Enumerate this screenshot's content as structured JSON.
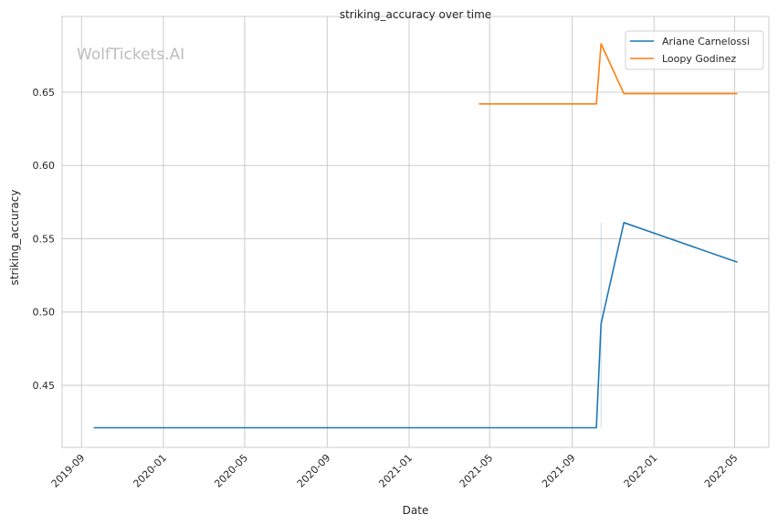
{
  "chart_data": {
    "type": "line",
    "title": "striking_accuracy over time",
    "xlabel": "Date",
    "ylabel": "striking_accuracy",
    "watermark": "WolfTickets.AI",
    "grid": true,
    "legend_position": "top-right",
    "xlim": [
      "2019-08-03",
      "2022-06-21"
    ],
    "ylim": [
      0.4076,
      0.7017
    ],
    "x_ticks": [
      "2019-09",
      "2020-01",
      "2020-05",
      "2020-09",
      "2021-01",
      "2021-05",
      "2021-09",
      "2022-01",
      "2022-05"
    ],
    "y_ticks": [
      0.45,
      0.5,
      0.55,
      0.6,
      0.65
    ],
    "series": [
      {
        "name": "Ariane Carnelossi",
        "color": "#1f77b4",
        "x": [
          "2019-09-19",
          "2021-10-07",
          "2021-10-14",
          "2021-11-17",
          "2022-05-05"
        ],
        "y": [
          0.421,
          0.421,
          0.492,
          0.561,
          0.534
        ],
        "ci": {
          "x": "2021-10-14",
          "low": 0.421,
          "high": 0.561
        }
      },
      {
        "name": "Loopy Godinez",
        "color": "#ff7f0e",
        "x": [
          "2021-04-15",
          "2021-10-07",
          "2021-10-14",
          "2021-11-17",
          "2022-05-05"
        ],
        "y": [
          0.642,
          0.642,
          0.683,
          0.649,
          0.649
        ]
      }
    ]
  }
}
